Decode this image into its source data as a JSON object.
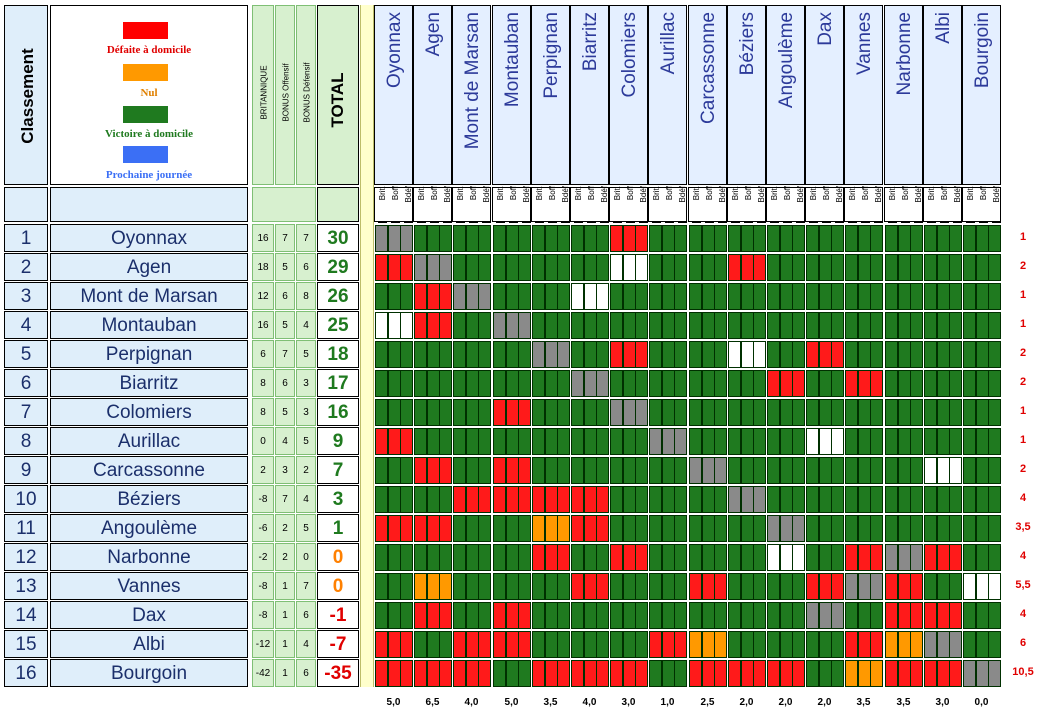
{
  "header": {
    "classement": "Classement",
    "britannique": "BRITANNIQUE",
    "bonus_off": "BONUS Offensif",
    "bonus_def": "BONUS Défensif",
    "total": "TOTAL",
    "sub_labels": [
      "Brit.",
      "Boff",
      "Bdéf"
    ]
  },
  "legend": [
    {
      "label": "Défaite à domicile",
      "color": "#ff0000",
      "text_color": "#e00000"
    },
    {
      "label": "Nul",
      "color": "#ff9900",
      "text_color": "#e08000"
    },
    {
      "label": "Victoire à domicile",
      "color": "#1f7a1f",
      "text_color": "#1f7a1f"
    },
    {
      "label": "Prochaine journée",
      "color": "#3b6ff5",
      "text_color": "#3b6ff5"
    }
  ],
  "colors": {
    "win": "#1f7a1f",
    "loss": "#ff1a1a",
    "draw": "#ff9900",
    "self": "#8a8a8a",
    "next": "#ffffff"
  },
  "teams": [
    "Oyonnax",
    "Agen",
    "Mont de Marsan",
    "Montauban",
    "Perpignan",
    "Biarritz",
    "Colomiers",
    "Aurillac",
    "Carcassonne",
    "Béziers",
    "Angoulème",
    "Dax",
    "Vannes",
    "Narbonne",
    "Albi",
    "Bourgoin"
  ],
  "rows": [
    {
      "rank": "1",
      "team": "Oyonnax",
      "brit": "16",
      "boff": "7",
      "bdef": "7",
      "total": "30",
      "total_color": "#1f7a1f",
      "right": "1"
    },
    {
      "rank": "2",
      "team": "Agen",
      "brit": "18",
      "boff": "5",
      "bdef": "6",
      "total": "29",
      "total_color": "#1f7a1f",
      "right": "2"
    },
    {
      "rank": "3",
      "team": "Mont de Marsan",
      "brit": "12",
      "boff": "6",
      "bdef": "8",
      "total": "26",
      "total_color": "#1f7a1f",
      "right": "1"
    },
    {
      "rank": "4",
      "team": "Montauban",
      "brit": "16",
      "boff": "5",
      "bdef": "4",
      "total": "25",
      "total_color": "#1f7a1f",
      "right": "1"
    },
    {
      "rank": "5",
      "team": "Perpignan",
      "brit": "6",
      "boff": "7",
      "bdef": "5",
      "total": "18",
      "total_color": "#1f7a1f",
      "right": "2"
    },
    {
      "rank": "6",
      "team": "Biarritz",
      "brit": "8",
      "boff": "6",
      "bdef": "3",
      "total": "17",
      "total_color": "#1f7a1f",
      "right": "2"
    },
    {
      "rank": "7",
      "team": "Colomiers",
      "brit": "8",
      "boff": "5",
      "bdef": "3",
      "total": "16",
      "total_color": "#1f7a1f",
      "right": "1"
    },
    {
      "rank": "8",
      "team": "Aurillac",
      "brit": "0",
      "boff": "4",
      "bdef": "5",
      "total": "9",
      "total_color": "#1f7a1f",
      "right": "1"
    },
    {
      "rank": "9",
      "team": "Carcassonne",
      "brit": "2",
      "boff": "3",
      "bdef": "2",
      "total": "7",
      "total_color": "#1f7a1f",
      "right": "2"
    },
    {
      "rank": "10",
      "team": "Béziers",
      "brit": "-8",
      "boff": "7",
      "bdef": "4",
      "total": "3",
      "total_color": "#1f7a1f",
      "right": "4"
    },
    {
      "rank": "11",
      "team": "Angoulème",
      "brit": "-6",
      "boff": "2",
      "bdef": "5",
      "total": "1",
      "total_color": "#1f7a1f",
      "right": "3,5"
    },
    {
      "rank": "12",
      "team": "Narbonne",
      "brit": "-2",
      "boff": "2",
      "bdef": "0",
      "total": "0",
      "total_color": "#ff8000",
      "right": "4"
    },
    {
      "rank": "13",
      "team": "Vannes",
      "brit": "-8",
      "boff": "1",
      "bdef": "7",
      "total": "0",
      "total_color": "#ff8000",
      "right": "5,5"
    },
    {
      "rank": "14",
      "team": "Dax",
      "brit": "-8",
      "boff": "1",
      "bdef": "6",
      "total": "-1",
      "total_color": "#e00000",
      "right": "4"
    },
    {
      "rank": "15",
      "team": "Albi",
      "brit": "-12",
      "boff": "1",
      "bdef": "4",
      "total": "-7",
      "total_color": "#e00000",
      "right": "6"
    },
    {
      "rank": "16",
      "team": "Bourgoin",
      "brit": "-42",
      "boff": "1",
      "bdef": "6",
      "total": "-35",
      "total_color": "#e00000",
      "right": "10,5"
    }
  ],
  "grid": [
    [
      "S",
      "W",
      "W",
      "W",
      "W",
      "W",
      "L",
      "W",
      "W",
      "W",
      "W",
      "W",
      "W",
      "W",
      "W",
      "W"
    ],
    [
      "L",
      "S",
      "W",
      "W",
      "W",
      "W",
      "N",
      "W",
      "W",
      "L",
      "W",
      "W",
      "W",
      "W",
      "W",
      "W"
    ],
    [
      "W",
      "L",
      "S",
      "W",
      "W",
      "N",
      "W",
      "W",
      "W",
      "W",
      "W",
      "W",
      "W",
      "W",
      "W",
      "W"
    ],
    [
      "N",
      "L",
      "W",
      "S",
      "W",
      "W",
      "W",
      "W",
      "W",
      "W",
      "W",
      "W",
      "W",
      "W",
      "W",
      "W"
    ],
    [
      "W",
      "W",
      "W",
      "W",
      "S",
      "W",
      "L",
      "W",
      "W",
      "N",
      "W",
      "L",
      "W",
      "W",
      "W",
      "W"
    ],
    [
      "W",
      "W",
      "W",
      "W",
      "W",
      "S",
      "W",
      "W",
      "W",
      "W",
      "L",
      "W",
      "L",
      "W",
      "W",
      "W"
    ],
    [
      "W",
      "W",
      "W",
      "L",
      "W",
      "W",
      "S",
      "W",
      "W",
      "W",
      "W",
      "W",
      "W",
      "W",
      "W",
      "W"
    ],
    [
      "L",
      "W",
      "W",
      "W",
      "W",
      "W",
      "W",
      "S",
      "W",
      "W",
      "W",
      "N",
      "W",
      "W",
      "W",
      "W"
    ],
    [
      "W",
      "L",
      "W",
      "L",
      "W",
      "W",
      "W",
      "W",
      "S",
      "W",
      "W",
      "W",
      "W",
      "W",
      "N",
      "W"
    ],
    [
      "W",
      "W",
      "L",
      "L",
      "L",
      "L",
      "W",
      "W",
      "W",
      "S",
      "W",
      "W",
      "W",
      "W",
      "W",
      "W"
    ],
    [
      "L",
      "L",
      "W",
      "W",
      "D",
      "L",
      "W",
      "W",
      "W",
      "W",
      "S",
      "W",
      "W",
      "W",
      "W",
      "W"
    ],
    [
      "W",
      "W",
      "W",
      "W",
      "L",
      "W",
      "L",
      "W",
      "W",
      "W",
      "N",
      "W",
      "L",
      "S",
      "L",
      "W"
    ],
    [
      "W",
      "D",
      "W",
      "W",
      "W",
      "L",
      "W",
      "W",
      "L",
      "W",
      "W",
      "L",
      "S",
      "L",
      "W",
      "N"
    ],
    [
      "W",
      "L",
      "W",
      "L",
      "W",
      "W",
      "W",
      "W",
      "W",
      "W",
      "W",
      "S",
      "W",
      "L",
      "L",
      "W"
    ],
    [
      "L",
      "W",
      "L",
      "L",
      "W",
      "W",
      "W",
      "L",
      "D",
      "W",
      "W",
      "W",
      "L",
      "D",
      "S",
      "W"
    ],
    [
      "L",
      "L",
      "L",
      "W",
      "L",
      "L",
      "L",
      "W",
      "L",
      "L",
      "L",
      "W",
      "D",
      "L",
      "L",
      "S"
    ]
  ],
  "footer": [
    "5,0",
    "6,5",
    "4,0",
    "5,0",
    "3,5",
    "4,0",
    "3,0",
    "1,0",
    "2,5",
    "2,0",
    "2,0",
    "2,0",
    "3,5",
    "3,5",
    "3,0",
    "0,0"
  ]
}
